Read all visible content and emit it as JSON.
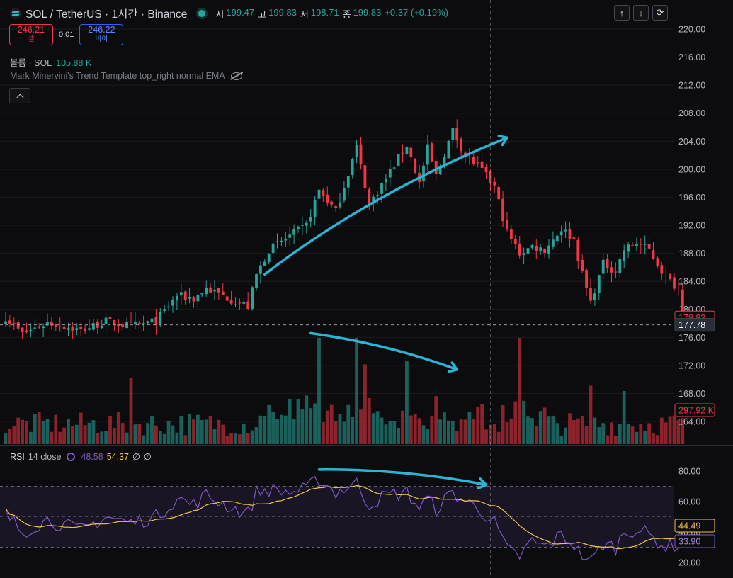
{
  "header": {
    "symbol": "SOL / TetherUS · 1시간 · Binance",
    "ohlc": [
      {
        "label": "시",
        "value": "199.47"
      },
      {
        "label": "고",
        "value": "199.83"
      },
      {
        "label": "저",
        "value": "198.71"
      },
      {
        "label": "종",
        "value": "199.83"
      }
    ],
    "change": "+0.37 (+0.19%)"
  },
  "trade": {
    "sell_price": "246.21",
    "sell_label": "셀",
    "spread": "0.01",
    "buy_price": "246.22",
    "buy_label": "바이"
  },
  "volume_legend": {
    "label": "볼륨 · SOL",
    "value": "105.88 K"
  },
  "indicator_legend": {
    "label": "Mark Minervini's Trend Template top_right normal EMA"
  },
  "controls": {
    "up": "↑",
    "down": "↓",
    "reset": "⟳"
  },
  "rsi_legend": {
    "label": "RSI",
    "params": "14 close",
    "rsi_value": "48.58",
    "ma_value": "54.37",
    "extra1": "∅",
    "extra2": "∅"
  },
  "colors": {
    "up": "#26a69a",
    "down": "#f23645",
    "rsi": "#7e57c2",
    "rsi_ma": "#f0c44c",
    "annotation": "#29b6d6"
  },
  "chart_data": {
    "type": "candlestick",
    "price_axis": {
      "ticks": [
        "220.00",
        "216.00",
        "212.00",
        "208.00",
        "204.00",
        "200.00",
        "196.00",
        "192.00",
        "188.00",
        "184.00",
        "180.00",
        "176.00",
        "172.00",
        "168.00",
        "164.00"
      ],
      "ylim": [
        161.2,
        221.8
      ]
    },
    "labels": {
      "last_price": "177.78",
      "volume_last": "297.92 K",
      "rsi_ma_last": "44.49",
      "rsi_last": "33.90",
      "prev_close_tag": "178.83"
    },
    "rsi_axis": {
      "ticks": [
        "80.00",
        "60.00",
        "40.00",
        "20.00"
      ],
      "band_upper": 70,
      "band_middle": 50,
      "band_lower": 30
    },
    "pivots": [
      {
        "i": 0,
        "price": 178.9,
        "rsi": 52
      },
      {
        "i": 4,
        "price": 176.5,
        "rsi": 40
      },
      {
        "i": 10,
        "price": 178.1,
        "rsi": 48
      },
      {
        "i": 18,
        "price": 177.0,
        "rsi": 41
      },
      {
        "i": 24,
        "price": 178.3,
        "rsi": 50
      },
      {
        "i": 30,
        "price": 177.6,
        "rsi": 46
      },
      {
        "i": 36,
        "price": 178.3,
        "rsi": 50
      },
      {
        "i": 41,
        "price": 182.0,
        "rsi": 62
      },
      {
        "i": 45,
        "price": 181.5,
        "rsi": 58
      },
      {
        "i": 48,
        "price": 183.0,
        "rsi": 64
      },
      {
        "i": 54,
        "price": 181.4,
        "rsi": 56
      },
      {
        "i": 58,
        "price": 180.4,
        "rsi": 52
      },
      {
        "i": 60,
        "price": 184.9,
        "rsi": 66
      },
      {
        "i": 63,
        "price": 188.5,
        "rsi": 68
      },
      {
        "i": 68,
        "price": 190.5,
        "rsi": 66
      },
      {
        "i": 72,
        "price": 192.0,
        "rsi": 68
      },
      {
        "i": 75,
        "price": 197.0,
        "rsi": 75
      },
      {
        "i": 79,
        "price": 194.0,
        "rsi": 66
      },
      {
        "i": 84,
        "price": 203.2,
        "rsi": 72
      },
      {
        "i": 87,
        "price": 195.0,
        "rsi": 58
      },
      {
        "i": 91,
        "price": 198.7,
        "rsi": 64
      },
      {
        "i": 96,
        "price": 203.5,
        "rsi": 66
      },
      {
        "i": 99,
        "price": 198.0,
        "rsi": 56
      },
      {
        "i": 101,
        "price": 203.0,
        "rsi": 62
      },
      {
        "i": 103,
        "price": 199.0,
        "rsi": 55
      },
      {
        "i": 107,
        "price": 205.5,
        "rsi": 66
      },
      {
        "i": 110,
        "price": 202.0,
        "rsi": 60
      },
      {
        "i": 113,
        "price": 200.5,
        "rsi": 56
      },
      {
        "i": 117,
        "price": 197.5,
        "rsi": 46
      },
      {
        "i": 120,
        "price": 191.0,
        "rsi": 28
      },
      {
        "i": 123,
        "price": 188.0,
        "rsi": 24
      },
      {
        "i": 126,
        "price": 189.0,
        "rsi": 34
      },
      {
        "i": 129,
        "price": 188.5,
        "rsi": 30
      },
      {
        "i": 133,
        "price": 191.5,
        "rsi": 38
      },
      {
        "i": 136,
        "price": 190.0,
        "rsi": 32
      },
      {
        "i": 138,
        "price": 185.0,
        "rsi": 22
      },
      {
        "i": 140,
        "price": 181.0,
        "rsi": 20
      },
      {
        "i": 143,
        "price": 186.5,
        "rsi": 32
      },
      {
        "i": 146,
        "price": 185.5,
        "rsi": 30
      },
      {
        "i": 148,
        "price": 188.5,
        "rsi": 40
      },
      {
        "i": 151,
        "price": 189.5,
        "rsi": 42
      },
      {
        "i": 154,
        "price": 188.5,
        "rsi": 38
      },
      {
        "i": 158,
        "price": 184.5,
        "rsi": 30
      },
      {
        "i": 161,
        "price": 183.0,
        "rsi": 32
      },
      {
        "i": 162,
        "price": 178.8,
        "rsi": 34
      }
    ],
    "volume_peaks": [
      {
        "i": 30,
        "v": 0.62
      },
      {
        "i": 75,
        "v": 1.0
      },
      {
        "i": 84,
        "v": 1.0
      },
      {
        "i": 86,
        "v": 0.75
      },
      {
        "i": 96,
        "v": 0.78
      },
      {
        "i": 123,
        "v": 1.0
      },
      {
        "i": 140,
        "v": 0.55
      },
      {
        "i": 148,
        "v": 0.5
      }
    ],
    "annotations": [
      {
        "type": "arrow",
        "from": [
          62,
          185
        ],
        "to": [
          120,
          204.5
        ]
      },
      {
        "type": "arrow",
        "from": [
          73,
          176.6
        ],
        "to": [
          108,
          171.4
        ]
      },
      {
        "type": "arrow",
        "from": [
          75,
          81
        ],
        "to": [
          115,
          71
        ]
      }
    ]
  }
}
